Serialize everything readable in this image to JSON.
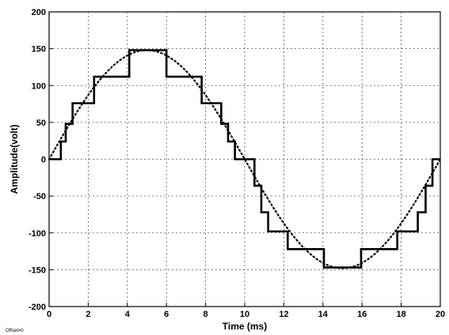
{
  "chart_data": {
    "type": "line",
    "title": "",
    "xlabel": "Time (ms)",
    "ylabel": "Amplitude(volt)",
    "xlim": [
      0,
      20
    ],
    "ylim": [
      -200,
      200
    ],
    "xticks": [
      0,
      2,
      4,
      6,
      8,
      10,
      12,
      14,
      16,
      18,
      20
    ],
    "yticks": [
      -200,
      -150,
      -100,
      -50,
      0,
      50,
      100,
      150,
      200
    ],
    "grid": true,
    "grid_style": "dotted",
    "footnote": "Offset=0",
    "series": [
      {
        "style": "dotted",
        "color": "#000000",
        "function": "sine",
        "amplitude": 148,
        "period_ms": 20
      },
      {
        "style": "solid-step",
        "color": "#000000",
        "points": [
          [
            0,
            0
          ],
          [
            0.6,
            0
          ],
          [
            0.6,
            24
          ],
          [
            0.85,
            24
          ],
          [
            0.85,
            48
          ],
          [
            1.2,
            48
          ],
          [
            1.2,
            76
          ],
          [
            2.3,
            76
          ],
          [
            2.3,
            112
          ],
          [
            4.1,
            112
          ],
          [
            4.1,
            148
          ],
          [
            6.0,
            148
          ],
          [
            6.0,
            112
          ],
          [
            7.8,
            112
          ],
          [
            7.8,
            76
          ],
          [
            8.8,
            76
          ],
          [
            8.8,
            48
          ],
          [
            9.15,
            48
          ],
          [
            9.15,
            24
          ],
          [
            9.5,
            24
          ],
          [
            9.5,
            0
          ],
          [
            10.5,
            0
          ],
          [
            10.5,
            -36
          ],
          [
            10.85,
            -36
          ],
          [
            10.85,
            -72
          ],
          [
            11.2,
            -72
          ],
          [
            11.2,
            -98
          ],
          [
            12.2,
            -98
          ],
          [
            12.2,
            -122
          ],
          [
            14.05,
            -122
          ],
          [
            14.05,
            -147
          ],
          [
            15.95,
            -147
          ],
          [
            15.95,
            -122
          ],
          [
            17.8,
            -122
          ],
          [
            17.8,
            -98
          ],
          [
            18.85,
            -98
          ],
          [
            18.85,
            -72
          ],
          [
            19.25,
            -72
          ],
          [
            19.25,
            -36
          ],
          [
            19.6,
            -36
          ],
          [
            19.6,
            0
          ],
          [
            20,
            0
          ]
        ]
      }
    ]
  }
}
